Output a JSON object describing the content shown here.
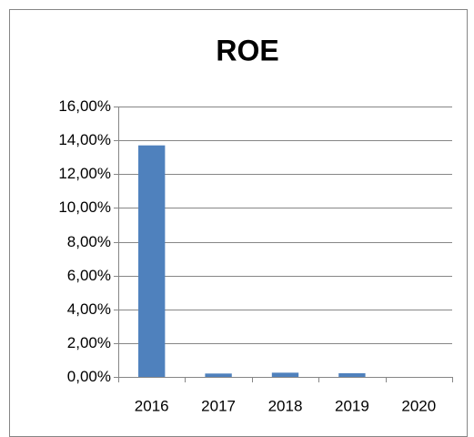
{
  "chart_data": {
    "type": "bar",
    "title": "ROE",
    "categories": [
      "2016",
      "2017",
      "2018",
      "2019",
      "2020"
    ],
    "values": [
      13.7,
      0.2,
      0.25,
      0.22,
      0
    ],
    "color": "#4f81bd",
    "ylim": [
      0,
      16
    ],
    "yticks": [
      {
        "value": 0,
        "label": "0,00%"
      },
      {
        "value": 2,
        "label": "2,00%"
      },
      {
        "value": 4,
        "label": "4,00%"
      },
      {
        "value": 6,
        "label": "6,00%"
      },
      {
        "value": 8,
        "label": "8,00%"
      },
      {
        "value": 10,
        "label": "10,00%"
      },
      {
        "value": 12,
        "label": "12,00%"
      },
      {
        "value": 14,
        "label": "14,00%"
      },
      {
        "value": 16,
        "label": "16,00%"
      }
    ],
    "grid": true
  }
}
